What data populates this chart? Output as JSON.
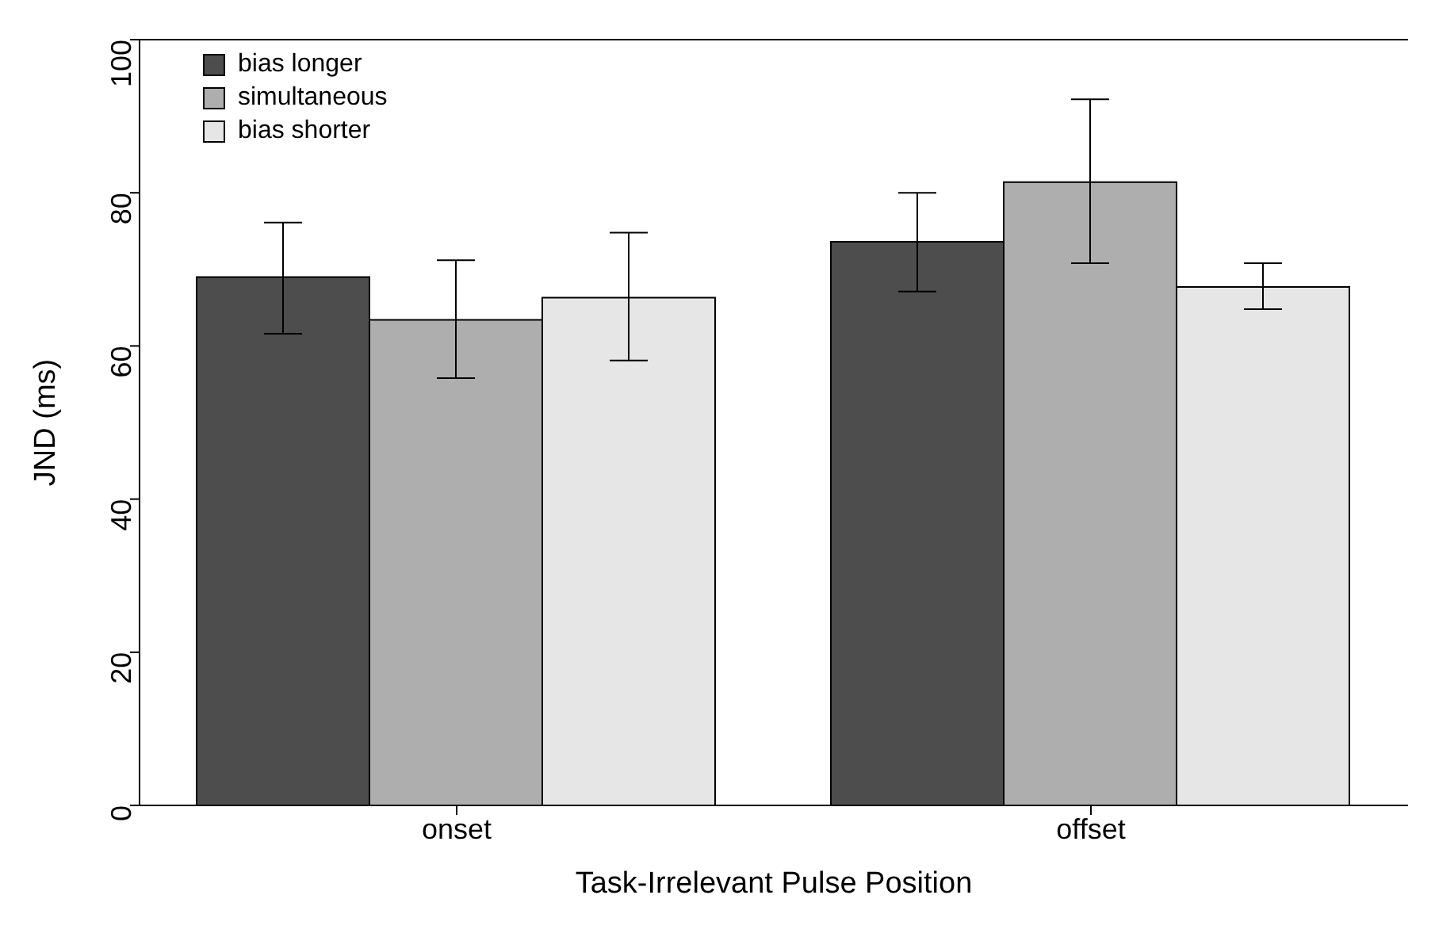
{
  "chart_data": {
    "type": "bar",
    "xlabel": "Task-Irrelevant Pulse Position",
    "ylabel": "JND (ms)",
    "categories": [
      "onset",
      "offset"
    ],
    "series": [
      {
        "name": "bias longer",
        "color": "#4d4d4d",
        "values": [
          69,
          73.6
        ],
        "errors": [
          [
            61.6,
            76.1
          ],
          [
            67.1,
            80
          ]
        ]
      },
      {
        "name": "simultaneous",
        "color": "#aeaeae",
        "values": [
          63.4,
          81.4
        ],
        "errors": [
          [
            55.8,
            71.2
          ],
          [
            70.8,
            92.2
          ]
        ]
      },
      {
        "name": "bias shorter",
        "color": "#e6e6e6",
        "values": [
          66.3,
          67.7
        ],
        "errors": [
          [
            58.1,
            74.8
          ],
          [
            64.8,
            70.8
          ]
        ]
      }
    ],
    "ylim": [
      0,
      100
    ],
    "yticks": [
      0,
      20,
      40,
      60,
      80,
      100
    ],
    "grid": false,
    "legend": "top left"
  }
}
